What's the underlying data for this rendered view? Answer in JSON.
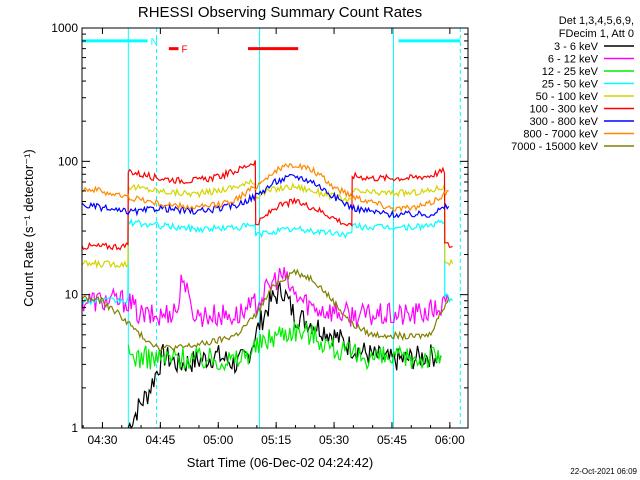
{
  "chart_data": {
    "type": "line",
    "title": "RHESSI Observing Summary Count Rates",
    "xlabel": "Start Time (06-Dec-02 04:24:42)",
    "ylabel": "Count Rate (s⁻¹ detector⁻¹)",
    "x_unit": "minutes",
    "x_ticks": [
      {
        "label": "04:30",
        "value": 5.3
      },
      {
        "label": "04:45",
        "value": 20.3
      },
      {
        "label": "05:00",
        "value": 35.3
      },
      {
        "label": "05:15",
        "value": 50.3
      },
      {
        "label": "05:30",
        "value": 65.3
      },
      {
        "label": "05:45",
        "value": 80.3
      },
      {
        "label": "06:00",
        "value": 95.3
      }
    ],
    "xlim": [
      0,
      100
    ],
    "y_scale": "log",
    "ylim": [
      1,
      1000
    ],
    "y_ticks": [
      {
        "label": "1",
        "value": 1
      },
      {
        "label": "10",
        "value": 10
      },
      {
        "label": "100",
        "value": 100
      },
      {
        "label": "1000",
        "value": 1000
      }
    ],
    "legend_header": [
      "Det 1,3,4,5,6,9,",
      "FDecim 1, Att 0"
    ],
    "legend_position": "top-right outside",
    "series": [
      {
        "name": "3 - 6 keV",
        "color": "#000000",
        "x": [
          12,
          15,
          17,
          19,
          21,
          25,
          30,
          35,
          40,
          43,
          46,
          49,
          52,
          55,
          60,
          65,
          70,
          75,
          80,
          85,
          90,
          93
        ],
        "y": [
          1.0,
          1.5,
          1.8,
          2.5,
          3.5,
          3.0,
          3.2,
          3.5,
          3.0,
          3.5,
          6,
          9,
          11,
          7,
          6,
          5,
          4,
          3.5,
          3.2,
          3.3,
          3.5,
          3.5
        ]
      },
      {
        "name": "6 - 12 keV",
        "color": "#ff00ff",
        "x": [
          0,
          5,
          12,
          15,
          20,
          25,
          26,
          28,
          30,
          35,
          40,
          44,
          47,
          50,
          52,
          55,
          60,
          65,
          70,
          75,
          80,
          85,
          90,
          93,
          95
        ],
        "y": [
          9,
          9,
          9,
          7,
          6.8,
          8,
          15,
          8,
          7,
          7,
          7,
          8,
          10,
          13,
          14,
          10,
          8,
          7.5,
          7,
          7,
          7,
          7,
          7.5,
          8,
          9
        ]
      },
      {
        "name": "12 - 25 keV",
        "color": "#00ee00",
        "x": [
          12,
          15,
          20,
          25,
          30,
          35,
          40,
          45,
          50,
          55,
          60,
          65,
          70,
          75,
          80,
          85,
          90,
          93
        ],
        "y": [
          3.5,
          3.4,
          3.3,
          3.4,
          3.3,
          3.3,
          3.2,
          4,
          5,
          5.5,
          5,
          4,
          3.5,
          3.4,
          3.3,
          3.3,
          3.4,
          3.5
        ]
      },
      {
        "name": "25 - 50 keV",
        "color": "#00ffff",
        "x": [
          0,
          5,
          11.9,
          12,
          15,
          20,
          25,
          30,
          35,
          40,
          44.9,
          45,
          50,
          55,
          60,
          65,
          69.9,
          70,
          75,
          80,
          85,
          90,
          93.9,
          94,
          96
        ],
        "y": [
          9,
          9,
          9,
          35,
          34,
          33,
          32,
          31,
          31.5,
          32,
          33,
          28,
          30,
          31,
          30,
          29,
          28,
          33,
          32,
          32,
          32,
          33,
          35,
          10,
          9
        ]
      },
      {
        "name": "50 - 100 keV",
        "color": "#d4d400",
        "x": [
          0,
          5,
          11.9,
          12,
          15,
          20,
          25,
          30,
          35,
          40,
          44.9,
          45,
          50,
          55,
          60,
          65,
          69.9,
          70,
          75,
          80,
          85,
          90,
          93.9,
          94,
          96
        ],
        "y": [
          17,
          17,
          17,
          65,
          63,
          60,
          58,
          57,
          60,
          65,
          70,
          55,
          62,
          65,
          60,
          55,
          50,
          60,
          58,
          58,
          58,
          60,
          65,
          18,
          17
        ]
      },
      {
        "name": "100 - 300 keV",
        "color": "#ff0000",
        "x": [
          0,
          5,
          11.9,
          12,
          15,
          20,
          25,
          30,
          35,
          40,
          44.9,
          45,
          50,
          55,
          60,
          65,
          69.9,
          70,
          75,
          80,
          85,
          90,
          93.9,
          94,
          96
        ],
        "y": [
          23,
          23,
          23,
          85,
          80,
          75,
          72,
          72,
          76,
          85,
          100,
          33,
          45,
          50,
          45,
          38,
          32,
          78,
          75,
          75,
          75,
          78,
          85,
          24,
          23
        ]
      },
      {
        "name": "300 - 800 keV",
        "color": "#0000ff",
        "x": [
          0,
          5,
          10,
          15,
          20,
          25,
          30,
          35,
          40,
          45,
          50,
          55,
          60,
          65,
          70,
          75,
          80,
          85,
          90,
          95
        ],
        "y": [
          47,
          45,
          42,
          42,
          45,
          43,
          42,
          44,
          47,
          55,
          70,
          78,
          70,
          55,
          45,
          42,
          40,
          40,
          40,
          46
        ]
      },
      {
        "name": "800 - 7000 keV",
        "color": "#ff8800",
        "x": [
          0,
          5,
          10,
          15,
          20,
          25,
          30,
          35,
          40,
          45,
          50,
          55,
          60,
          65,
          70,
          75,
          80,
          85,
          90,
          95
        ],
        "y": [
          63,
          60,
          55,
          52,
          48,
          46,
          45,
          47,
          52,
          65,
          85,
          95,
          85,
          65,
          55,
          50,
          45,
          44,
          48,
          60
        ]
      },
      {
        "name": "7000 - 15000 keV",
        "color": "#808000",
        "x": [
          0,
          5,
          10,
          15,
          20,
          25,
          30,
          35,
          40,
          45,
          50,
          55,
          60,
          65,
          70,
          75,
          80,
          85,
          90,
          95
        ],
        "y": [
          9.5,
          9,
          7,
          5,
          4,
          4,
          4.2,
          4.5,
          5,
          7,
          12,
          15,
          13,
          9,
          6,
          5,
          5,
          4.8,
          5,
          9.5
        ]
      }
    ],
    "flags": [
      {
        "label": "N",
        "color": "#00ffff",
        "y": 800,
        "segments": [
          [
            0,
            17
          ],
          [
            82,
            98
          ]
        ]
      },
      {
        "label": "F",
        "color": "#ff0000",
        "y": 700,
        "segments": [
          [
            22.5,
            25
          ],
          [
            43,
            56
          ]
        ]
      }
    ],
    "vertical_lines": [
      {
        "x": 12,
        "color": "#00ffff",
        "dashed": false
      },
      {
        "x": 19.3,
        "color": "#00ffff",
        "dashed": true
      },
      {
        "x": 46,
        "color": "#00ffff",
        "dashed": false
      },
      {
        "x": 80.7,
        "color": "#00ffff",
        "dashed": false
      },
      {
        "x": 98,
        "color": "#00ffff",
        "dashed": true
      }
    ],
    "grid": false,
    "footer_date": "22-Oct-2021 06:09"
  }
}
